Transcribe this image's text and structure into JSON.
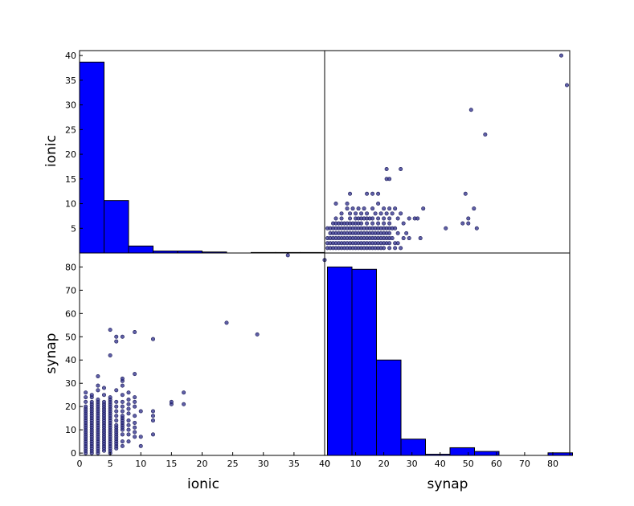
{
  "chart_data": {
    "type": "scatter_matrix",
    "variables": [
      "ionic",
      "synap"
    ],
    "labels": {
      "ionic": "ionic",
      "synap": "synap"
    },
    "ranges": {
      "ionic": [
        0,
        40
      ],
      "synap": [
        -1,
        86
      ]
    },
    "ticks": {
      "ionic_x": [
        "0",
        "5",
        "10",
        "15",
        "20",
        "25",
        "30",
        "35",
        "40"
      ],
      "ionic_y": [
        "5",
        "10",
        "15",
        "20",
        "25",
        "30",
        "35",
        "40"
      ],
      "synap_x": [
        "0",
        "10",
        "20",
        "30",
        "40",
        "50",
        "60",
        "70",
        "80"
      ],
      "synap_y": [
        "0",
        "10",
        "20",
        "30",
        "40",
        "50",
        "60",
        "70",
        "80"
      ]
    },
    "hist_ionic": {
      "bin_edges": [
        0.0,
        4.1,
        8.2,
        12.3,
        16.4,
        20.5,
        24.6,
        28.7,
        32.8,
        36.9,
        41.0
      ],
      "heights": [
        38.2,
        10.5,
        1.4,
        0.4,
        0.4,
        0.2,
        0.0,
        0.1,
        0.1,
        0.1
      ]
    },
    "hist_synap": {
      "bin_edges": [
        0.0,
        8.7,
        17.4,
        26.1,
        34.8,
        43.5,
        52.2,
        60.9,
        69.6,
        78.3,
        87.0
      ],
      "heights": [
        81,
        80,
        41,
        7,
        0.5,
        3.3,
        1.7,
        0,
        0,
        1.1
      ]
    },
    "points": [
      [
        1,
        0
      ],
      [
        1,
        1
      ],
      [
        1,
        2
      ],
      [
        1,
        3
      ],
      [
        1,
        4
      ],
      [
        1,
        5
      ],
      [
        1,
        6
      ],
      [
        1,
        7
      ],
      [
        1,
        8
      ],
      [
        1,
        9
      ],
      [
        1,
        10
      ],
      [
        1,
        11
      ],
      [
        1,
        12
      ],
      [
        1,
        13
      ],
      [
        1,
        14
      ],
      [
        1,
        15
      ],
      [
        1,
        16
      ],
      [
        1,
        17
      ],
      [
        1,
        18
      ],
      [
        1,
        19
      ],
      [
        1,
        20
      ],
      [
        1,
        22
      ],
      [
        1,
        24
      ],
      [
        1,
        26
      ],
      [
        2,
        0
      ],
      [
        2,
        1
      ],
      [
        2,
        2
      ],
      [
        2,
        3
      ],
      [
        2,
        4
      ],
      [
        2,
        5
      ],
      [
        2,
        6
      ],
      [
        2,
        7
      ],
      [
        2,
        8
      ],
      [
        2,
        9
      ],
      [
        2,
        10
      ],
      [
        2,
        11
      ],
      [
        2,
        12
      ],
      [
        2,
        13
      ],
      [
        2,
        14
      ],
      [
        2,
        15
      ],
      [
        2,
        16
      ],
      [
        2,
        17
      ],
      [
        2,
        18
      ],
      [
        2,
        19
      ],
      [
        2,
        20
      ],
      [
        2,
        21
      ],
      [
        2,
        22
      ],
      [
        2,
        24
      ],
      [
        2,
        25
      ],
      [
        3,
        0
      ],
      [
        3,
        1
      ],
      [
        3,
        2
      ],
      [
        3,
        3
      ],
      [
        3,
        4
      ],
      [
        3,
        5
      ],
      [
        3,
        6
      ],
      [
        3,
        7
      ],
      [
        3,
        8
      ],
      [
        3,
        9
      ],
      [
        3,
        10
      ],
      [
        3,
        11
      ],
      [
        3,
        12
      ],
      [
        3,
        13
      ],
      [
        3,
        14
      ],
      [
        3,
        15
      ],
      [
        3,
        16
      ],
      [
        3,
        17
      ],
      [
        3,
        18
      ],
      [
        3,
        19
      ],
      [
        3,
        20
      ],
      [
        3,
        21
      ],
      [
        3,
        22
      ],
      [
        3,
        23
      ],
      [
        3,
        27
      ],
      [
        3,
        29
      ],
      [
        3,
        33
      ],
      [
        4,
        1
      ],
      [
        4,
        2
      ],
      [
        4,
        3
      ],
      [
        4,
        4
      ],
      [
        4,
        5
      ],
      [
        4,
        6
      ],
      [
        4,
        7
      ],
      [
        4,
        8
      ],
      [
        4,
        9
      ],
      [
        4,
        10
      ],
      [
        4,
        11
      ],
      [
        4,
        12
      ],
      [
        4,
        13
      ],
      [
        4,
        14
      ],
      [
        4,
        15
      ],
      [
        4,
        16
      ],
      [
        4,
        17
      ],
      [
        4,
        18
      ],
      [
        4,
        19
      ],
      [
        4,
        20
      ],
      [
        4,
        21
      ],
      [
        4,
        22
      ],
      [
        4,
        25
      ],
      [
        4,
        28
      ],
      [
        5,
        0
      ],
      [
        5,
        1
      ],
      [
        5,
        2
      ],
      [
        5,
        3
      ],
      [
        5,
        4
      ],
      [
        5,
        5
      ],
      [
        5,
        6
      ],
      [
        5,
        7
      ],
      [
        5,
        8
      ],
      [
        5,
        9
      ],
      [
        5,
        10
      ],
      [
        5,
        11
      ],
      [
        5,
        12
      ],
      [
        5,
        13
      ],
      [
        5,
        14
      ],
      [
        5,
        15
      ],
      [
        5,
        16
      ],
      [
        5,
        17
      ],
      [
        5,
        18
      ],
      [
        5,
        19
      ],
      [
        5,
        20
      ],
      [
        5,
        21
      ],
      [
        5,
        22
      ],
      [
        5,
        23
      ],
      [
        5,
        24
      ],
      [
        5,
        42
      ],
      [
        5,
        53
      ],
      [
        6,
        2
      ],
      [
        6,
        3
      ],
      [
        6,
        4
      ],
      [
        6,
        5
      ],
      [
        6,
        6
      ],
      [
        6,
        7
      ],
      [
        6,
        8
      ],
      [
        6,
        9
      ],
      [
        6,
        10
      ],
      [
        6,
        11
      ],
      [
        6,
        12
      ],
      [
        6,
        14
      ],
      [
        6,
        16
      ],
      [
        6,
        18
      ],
      [
        6,
        20
      ],
      [
        6,
        22
      ],
      [
        6,
        27
      ],
      [
        6,
        48
      ],
      [
        6,
        50
      ],
      [
        7,
        3
      ],
      [
        7,
        5
      ],
      [
        7,
        8
      ],
      [
        7,
        10
      ],
      [
        7,
        11
      ],
      [
        7,
        12
      ],
      [
        7,
        13
      ],
      [
        7,
        14
      ],
      [
        7,
        15
      ],
      [
        7,
        16
      ],
      [
        7,
        18
      ],
      [
        7,
        20
      ],
      [
        7,
        22
      ],
      [
        7,
        25
      ],
      [
        7,
        29
      ],
      [
        7,
        31
      ],
      [
        7,
        32
      ],
      [
        7,
        50
      ],
      [
        8,
        5
      ],
      [
        8,
        8
      ],
      [
        8,
        10
      ],
      [
        8,
        12
      ],
      [
        8,
        14
      ],
      [
        8,
        17
      ],
      [
        8,
        19
      ],
      [
        8,
        21
      ],
      [
        8,
        23
      ],
      [
        8,
        26
      ],
      [
        9,
        7
      ],
      [
        9,
        9
      ],
      [
        9,
        11
      ],
      [
        9,
        13
      ],
      [
        9,
        16
      ],
      [
        9,
        20
      ],
      [
        9,
        22
      ],
      [
        9,
        24
      ],
      [
        9,
        34
      ],
      [
        9,
        52
      ],
      [
        10,
        3
      ],
      [
        10,
        7
      ],
      [
        10,
        18
      ],
      [
        12,
        8
      ],
      [
        12,
        14
      ],
      [
        12,
        16
      ],
      [
        12,
        18
      ],
      [
        12,
        49
      ],
      [
        15,
        21
      ],
      [
        15,
        22
      ],
      [
        17,
        21
      ],
      [
        17,
        26
      ],
      [
        24,
        56
      ],
      [
        29,
        51
      ],
      [
        34,
        85
      ],
      [
        40,
        83
      ]
    ]
  }
}
